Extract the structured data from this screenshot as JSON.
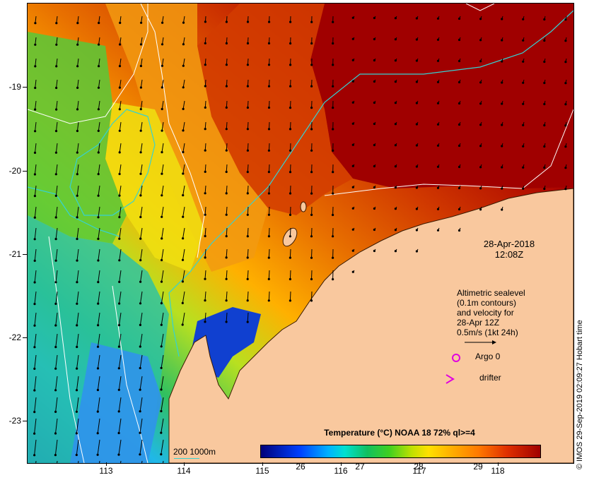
{
  "map": {
    "datetime": [
      "28-Apr-2018",
      "12:08Z"
    ],
    "legend_lines": [
      "Altimetric sealevel",
      "(0.1m contours)",
      "and velocity for",
      "28-Apr 12Z",
      "0.5m/s (1kt 24h)"
    ],
    "argo_label": "Argo 0",
    "drifter_label": "drifter",
    "isobath_label": "200  1000m",
    "colorbar_title": "Temperature (°C) NOAA 18 72% ql>=4",
    "colorbar_ticks": [
      "26",
      "27",
      "28",
      "29"
    ],
    "copyright": "© IMOS 29-Sep-2019 02:09:27 Hobart time",
    "y_ticks": [
      "-19",
      "-20",
      "-21",
      "-22",
      "-23"
    ],
    "x_ticks": [
      "113",
      "114",
      "115",
      "116",
      "117",
      "118"
    ],
    "colors": {
      "land": "#f9c89e",
      "isobath": "#35d2d2",
      "contour": "#ffffff",
      "argo": "#e000e0",
      "drifter": "#e000e0"
    }
  }
}
